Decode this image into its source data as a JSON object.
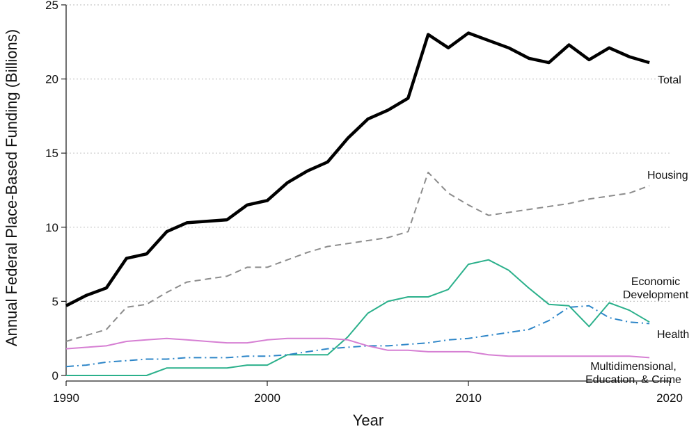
{
  "chart_data": {
    "type": "line",
    "title": "",
    "xlabel": "Year",
    "ylabel": "Annual Federal Place-Based Funding (Billions)",
    "xlim": [
      1990,
      2020
    ],
    "ylim": [
      0,
      25
    ],
    "x_ticks": [
      "1990",
      "2000",
      "2010",
      "2020"
    ],
    "y_ticks": [
      "0",
      "5",
      "10",
      "15",
      "20",
      "25"
    ],
    "grid": "horizontal dotted",
    "legend": "none (labels at line ends)",
    "x": [
      1990,
      1991,
      1992,
      1993,
      1994,
      1995,
      1996,
      1997,
      1998,
      1999,
      2000,
      2001,
      2002,
      2003,
      2004,
      2005,
      2006,
      2007,
      2008,
      2009,
      2010,
      2011,
      2012,
      2013,
      2014,
      2015,
      2016,
      2017,
      2018,
      2019
    ],
    "series": [
      {
        "name": "Total",
        "color": "#000000",
        "style": "solid-thick",
        "values": [
          4.7,
          5.4,
          5.9,
          7.9,
          8.2,
          9.7,
          10.3,
          10.4,
          10.5,
          11.5,
          11.8,
          13.0,
          13.8,
          14.4,
          16.0,
          17.3,
          17.9,
          18.7,
          23.0,
          22.1,
          23.1,
          22.6,
          22.1,
          21.4,
          21.1,
          22.3,
          21.3,
          22.1,
          21.5,
          21.1
        ]
      },
      {
        "name": "Housing",
        "color": "#8c8c8c",
        "style": "dashed",
        "values": [
          2.3,
          2.7,
          3.1,
          4.6,
          4.8,
          5.6,
          6.3,
          6.5,
          6.7,
          7.3,
          7.3,
          7.8,
          8.3,
          8.7,
          8.9,
          9.1,
          9.3,
          9.7,
          13.7,
          12.3,
          11.5,
          10.8,
          11.0,
          11.2,
          11.4,
          11.6,
          11.9,
          12.1,
          12.3,
          12.8
        ]
      },
      {
        "name": "Economic Development",
        "color": "#2bb08b",
        "style": "solid",
        "values": [
          0.0,
          0.0,
          0.0,
          0.0,
          0.0,
          0.5,
          0.5,
          0.5,
          0.5,
          0.7,
          0.7,
          1.4,
          1.4,
          1.4,
          2.6,
          4.2,
          5.0,
          5.3,
          5.3,
          5.8,
          7.5,
          7.8,
          7.1,
          5.9,
          4.8,
          4.7,
          3.3,
          4.9,
          4.4,
          3.6
        ]
      },
      {
        "name": "Health",
        "color": "#2e86c8",
        "style": "dash-dot",
        "values": [
          0.6,
          0.7,
          0.9,
          1.0,
          1.1,
          1.1,
          1.2,
          1.2,
          1.2,
          1.3,
          1.3,
          1.4,
          1.6,
          1.8,
          1.9,
          2.0,
          2.0,
          2.1,
          2.2,
          2.4,
          2.5,
          2.7,
          2.9,
          3.1,
          3.7,
          4.6,
          4.7,
          3.9,
          3.6,
          3.5
        ]
      },
      {
        "name": "Multidimensional, Education, & Crime",
        "color": "#d67fd3",
        "style": "solid",
        "values": [
          1.8,
          1.9,
          2.0,
          2.3,
          2.4,
          2.5,
          2.4,
          2.3,
          2.2,
          2.2,
          2.4,
          2.5,
          2.5,
          2.5,
          2.4,
          2.0,
          1.7,
          1.7,
          1.6,
          1.6,
          1.6,
          1.4,
          1.3,
          1.3,
          1.3,
          1.3,
          1.3,
          1.3,
          1.3,
          1.2
        ]
      }
    ],
    "annotations": [
      {
        "series": "Total",
        "lines": [
          "Total"
        ]
      },
      {
        "series": "Housing",
        "lines": [
          "Housing"
        ]
      },
      {
        "series": "Economic Development",
        "lines": [
          "Economic",
          "Development"
        ]
      },
      {
        "series": "Health",
        "lines": [
          "Health"
        ]
      },
      {
        "series": "Multidimensional, Education, & Crime",
        "lines": [
          "Multidimensional,",
          "Education, & Crime"
        ]
      }
    ]
  }
}
